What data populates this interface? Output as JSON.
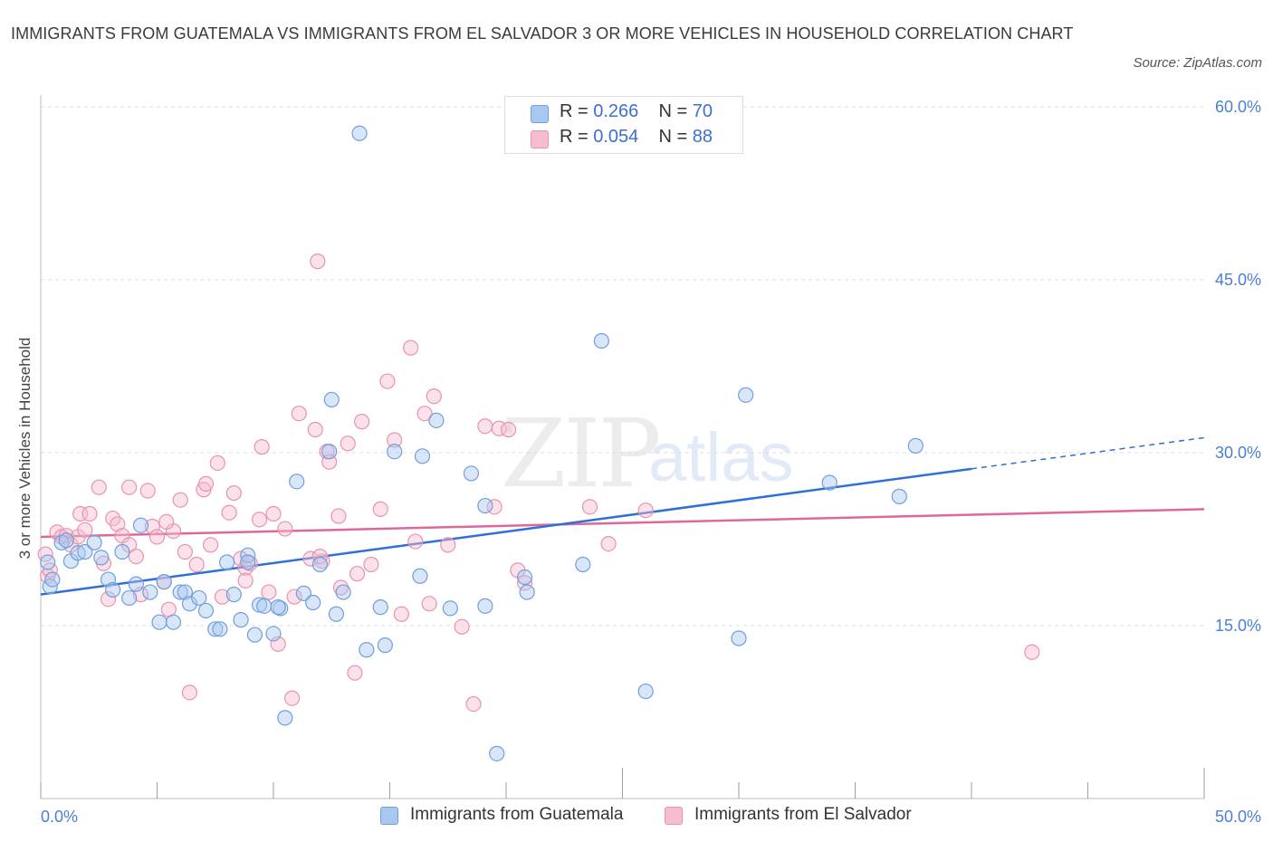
{
  "title": "IMMIGRANTS FROM GUATEMALA VS IMMIGRANTS FROM EL SALVADOR 3 OR MORE VEHICLES IN HOUSEHOLD CORRELATION CHART",
  "source": "Source: ZipAtlas.com",
  "watermark": {
    "zip": "ZIP",
    "atlas": "atlas"
  },
  "colors": {
    "guatemala_fill": "#a9c8f0",
    "guatemala_stroke": "#6f9fdc",
    "guatemala_line": "#2f6fd6",
    "salvador_fill": "#f6bcd0",
    "salvador_stroke": "#e992b0",
    "salvador_line": "#e0679a",
    "tick_text": "#4a7fd4",
    "grid": "#dedede"
  },
  "legend": {
    "rows": [
      {
        "r_label": "R = ",
        "r_value": "0.266",
        "n_label": "N = ",
        "n_value": "70"
      },
      {
        "r_label": "R = ",
        "r_value": "0.054",
        "n_label": "N = ",
        "n_value": "88"
      }
    ]
  },
  "bottom_legend": {
    "guatemala": "Immigrants from Guatemala",
    "salvador": "Immigrants from El Salvador"
  },
  "chart_data": {
    "type": "scatter",
    "title": "IMMIGRANTS FROM GUATEMALA VS IMMIGRANTS FROM EL SALVADOR 3 OR MORE VEHICLES IN HOUSEHOLD CORRELATION CHART",
    "xlabel": "",
    "ylabel": "3 or more Vehicles in Household",
    "xlim": [
      0,
      50
    ],
    "ylim": [
      0,
      60
    ],
    "x_tick_labels": [
      "0.0%",
      "50.0%"
    ],
    "y_tick_values": [
      15,
      30,
      45,
      60
    ],
    "y_tick_labels": [
      "15.0%",
      "30.0%",
      "45.0%",
      "60.0%"
    ],
    "series": [
      {
        "name": "Immigrants from Guatemala",
        "R": 0.266,
        "N": 70,
        "trend": {
          "x": [
            0,
            40
          ],
          "y": [
            17.7,
            28.6
          ],
          "dashed_to": [
            50,
            31.3
          ]
        },
        "points": [
          [
            0.3,
            20.5
          ],
          [
            0.4,
            18.4
          ],
          [
            0.5,
            19.0
          ],
          [
            0.9,
            22.2
          ],
          [
            1.1,
            22.4
          ],
          [
            1.3,
            20.6
          ],
          [
            1.6,
            21.3
          ],
          [
            1.9,
            21.4
          ],
          [
            2.3,
            22.2
          ],
          [
            2.6,
            20.9
          ],
          [
            2.9,
            19.0
          ],
          [
            3.1,
            18.1
          ],
          [
            3.5,
            21.4
          ],
          [
            3.8,
            17.4
          ],
          [
            4.1,
            18.6
          ],
          [
            4.3,
            23.7
          ],
          [
            4.7,
            17.9
          ],
          [
            5.1,
            15.3
          ],
          [
            5.3,
            18.8
          ],
          [
            5.7,
            15.3
          ],
          [
            6.0,
            17.9
          ],
          [
            6.2,
            17.9
          ],
          [
            6.4,
            16.9
          ],
          [
            6.8,
            17.4
          ],
          [
            7.1,
            16.3
          ],
          [
            7.5,
            14.7
          ],
          [
            7.7,
            14.7
          ],
          [
            8.0,
            20.5
          ],
          [
            8.3,
            17.7
          ],
          [
            8.6,
            15.5
          ],
          [
            8.9,
            21.1
          ],
          [
            9.2,
            14.2
          ],
          [
            9.4,
            16.8
          ],
          [
            9.6,
            16.7
          ],
          [
            10.0,
            14.3
          ],
          [
            10.3,
            16.5
          ],
          [
            10.5,
            7.0
          ],
          [
            11.0,
            27.5
          ],
          [
            11.3,
            17.8
          ],
          [
            11.7,
            17.0
          ],
          [
            12.0,
            20.3
          ],
          [
            12.5,
            34.6
          ],
          [
            12.7,
            16.0
          ],
          [
            13.0,
            17.9
          ],
          [
            13.7,
            57.7
          ],
          [
            14.0,
            12.9
          ],
          [
            14.6,
            16.6
          ],
          [
            14.8,
            13.3
          ],
          [
            15.2,
            30.1
          ],
          [
            16.3,
            19.3
          ],
          [
            16.4,
            29.7
          ],
          [
            17.0,
            32.8
          ],
          [
            17.6,
            16.5
          ],
          [
            18.5,
            28.2
          ],
          [
            19.1,
            16.7
          ],
          [
            19.1,
            25.4
          ],
          [
            19.6,
            3.9
          ],
          [
            20.8,
            19.2
          ],
          [
            20.9,
            17.9
          ],
          [
            23.3,
            20.3
          ],
          [
            24.1,
            39.7
          ],
          [
            26.0,
            9.3
          ],
          [
            30.0,
            13.9
          ],
          [
            30.3,
            35.0
          ],
          [
            33.9,
            27.4
          ],
          [
            36.9,
            26.2
          ],
          [
            37.6,
            30.6
          ],
          [
            12.4,
            30.1
          ],
          [
            10.2,
            16.6
          ],
          [
            8.9,
            20.5
          ]
        ]
      },
      {
        "name": "Immigrants from El Salvador",
        "R": 0.054,
        "N": 88,
        "trend": {
          "x": [
            0,
            50
          ],
          "y": [
            22.7,
            25.1
          ]
        },
        "points": [
          [
            0.2,
            21.2
          ],
          [
            0.3,
            19.3
          ],
          [
            0.4,
            19.8
          ],
          [
            0.7,
            23.1
          ],
          [
            0.9,
            22.7
          ],
          [
            1.1,
            22.8
          ],
          [
            1.3,
            22.0
          ],
          [
            1.6,
            22.7
          ],
          [
            1.7,
            24.7
          ],
          [
            1.9,
            23.3
          ],
          [
            2.1,
            24.7
          ],
          [
            2.5,
            27.0
          ],
          [
            2.7,
            20.4
          ],
          [
            2.9,
            17.3
          ],
          [
            3.1,
            24.3
          ],
          [
            3.3,
            23.8
          ],
          [
            3.5,
            22.8
          ],
          [
            3.8,
            22.0
          ],
          [
            4.1,
            21.0
          ],
          [
            4.3,
            17.7
          ],
          [
            4.6,
            26.7
          ],
          [
            4.8,
            23.6
          ],
          [
            5.0,
            22.7
          ],
          [
            5.3,
            18.8
          ],
          [
            5.5,
            16.4
          ],
          [
            5.7,
            23.2
          ],
          [
            6.0,
            25.9
          ],
          [
            6.2,
            21.4
          ],
          [
            6.4,
            9.2
          ],
          [
            6.7,
            20.3
          ],
          [
            7.0,
            26.8
          ],
          [
            7.1,
            27.3
          ],
          [
            7.3,
            22.0
          ],
          [
            7.6,
            29.1
          ],
          [
            7.8,
            17.5
          ],
          [
            8.1,
            24.8
          ],
          [
            8.3,
            26.5
          ],
          [
            8.6,
            20.8
          ],
          [
            8.8,
            20.0
          ],
          [
            9.0,
            20.4
          ],
          [
            9.4,
            24.2
          ],
          [
            9.5,
            30.5
          ],
          [
            9.8,
            17.9
          ],
          [
            10.0,
            24.7
          ],
          [
            10.2,
            13.4
          ],
          [
            10.5,
            23.4
          ],
          [
            10.8,
            8.7
          ],
          [
            10.9,
            17.5
          ],
          [
            11.1,
            33.4
          ],
          [
            11.6,
            20.8
          ],
          [
            11.8,
            32.0
          ],
          [
            12.1,
            20.6
          ],
          [
            12.3,
            30.1
          ],
          [
            12.4,
            29.2
          ],
          [
            12.8,
            24.5
          ],
          [
            12.9,
            18.3
          ],
          [
            13.2,
            30.8
          ],
          [
            13.6,
            19.5
          ],
          [
            13.8,
            32.7
          ],
          [
            14.2,
            20.3
          ],
          [
            14.6,
            25.1
          ],
          [
            14.9,
            36.2
          ],
          [
            15.2,
            31.1
          ],
          [
            15.5,
            16.0
          ],
          [
            15.9,
            39.1
          ],
          [
            16.1,
            22.3
          ],
          [
            16.5,
            33.4
          ],
          [
            16.7,
            16.9
          ],
          [
            16.9,
            34.9
          ],
          [
            17.5,
            22.0
          ],
          [
            18.1,
            14.9
          ],
          [
            18.6,
            8.2
          ],
          [
            19.1,
            32.3
          ],
          [
            19.5,
            25.3
          ],
          [
            19.7,
            32.1
          ],
          [
            20.1,
            32.0
          ],
          [
            20.5,
            19.8
          ],
          [
            20.8,
            18.7
          ],
          [
            23.6,
            25.3
          ],
          [
            24.4,
            22.1
          ],
          [
            26.0,
            25.0
          ],
          [
            13.5,
            10.9
          ],
          [
            11.9,
            46.6
          ],
          [
            42.6,
            12.7
          ],
          [
            3.8,
            27.0
          ],
          [
            5.4,
            24.0
          ],
          [
            12.0,
            21.0
          ],
          [
            8.8,
            18.9
          ]
        ]
      }
    ]
  }
}
